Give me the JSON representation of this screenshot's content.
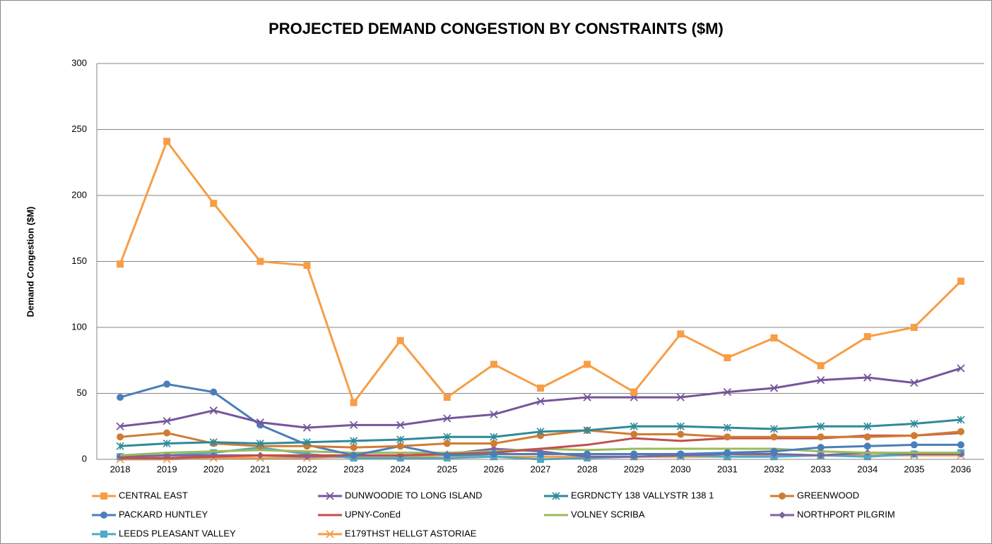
{
  "chart_data": {
    "type": "line",
    "title": "PROJECTED DEMAND CONGESTION BY CONSTRAINTS ($M)",
    "y_label": "Demand Congestion ($M)",
    "categories": [
      "2018",
      "2019",
      "2020",
      "2021",
      "2022",
      "2023",
      "2024",
      "2025",
      "2026",
      "2027",
      "2028",
      "2029",
      "2030",
      "2031",
      "2032",
      "2033",
      "2034",
      "2035",
      "2036"
    ],
    "ylim": [
      0,
      300
    ],
    "yticks": [
      0,
      50,
      100,
      150,
      200,
      250,
      300
    ],
    "grid": true,
    "legend": "bottom",
    "series": [
      {
        "name": "CENTRAL EAST",
        "color": "#f79d46",
        "marker": "square",
        "values": [
          148,
          241,
          194,
          150,
          147,
          43,
          90,
          47,
          72,
          54,
          72,
          51,
          95,
          77,
          92,
          71,
          93,
          100,
          135
        ]
      },
      {
        "name": "DUNWOODIE TO LONG ISLAND",
        "color": "#76559b",
        "marker": "x",
        "values": [
          25,
          29,
          37,
          28,
          24,
          26,
          26,
          31,
          34,
          44,
          47,
          47,
          47,
          51,
          54,
          60,
          62,
          58,
          69
        ]
      },
      {
        "name": "EGRDNCTY 138 VALLYSTR 138 1",
        "color": "#2f8a99",
        "marker": "asterisk",
        "values": [
          10,
          12,
          13,
          12,
          13,
          14,
          15,
          17,
          17,
          21,
          22,
          25,
          25,
          24,
          23,
          25,
          25,
          27,
          30
        ]
      },
      {
        "name": "GREENWOOD",
        "color": "#d17b32",
        "marker": "circle",
        "values": [
          17,
          20,
          12,
          10,
          10,
          9,
          10,
          12,
          12,
          18,
          22,
          19,
          19,
          17,
          17,
          17,
          17,
          18,
          21
        ]
      },
      {
        "name": "PACKARD HUNTLEY",
        "color": "#4a7ebb",
        "marker": "circle",
        "values": [
          47,
          57,
          51,
          26,
          11,
          3,
          10,
          3,
          4,
          4,
          4,
          4,
          4,
          5,
          6,
          9,
          10,
          11,
          11
        ]
      },
      {
        "name": "UPNY-ConEd",
        "color": "#c0504d",
        "marker": "none",
        "values": [
          1,
          1,
          2,
          3,
          3,
          3,
          3,
          4,
          5,
          8,
          11,
          16,
          14,
          16,
          16,
          16,
          18,
          18,
          20
        ]
      },
      {
        "name": "VOLNEY SCRIBA",
        "color": "#9bbb59",
        "marker": "none",
        "values": [
          3,
          5,
          6,
          7,
          6,
          5,
          5,
          5,
          6,
          8,
          7,
          8,
          8,
          8,
          8,
          6,
          5,
          5,
          5
        ]
      },
      {
        "name": "NORTHPORT PILGRIM",
        "color": "#8064a2",
        "marker": "diamond",
        "values": [
          2,
          3,
          3,
          3,
          2,
          3,
          3,
          4,
          8,
          6,
          2,
          2,
          3,
          4,
          4,
          3,
          5,
          4,
          4
        ]
      },
      {
        "name": "LEEDS PLEASANT VALLEY",
        "color": "#4bacc6",
        "marker": "square",
        "values": [
          2,
          3,
          5,
          9,
          4,
          1,
          1,
          1,
          2,
          0,
          1,
          2,
          3,
          2,
          2,
          3,
          2,
          4,
          5
        ]
      },
      {
        "name": "E179THST HELLGT ASTORIAE",
        "color": "#f79d46",
        "marker": "x",
        "values": [
          0,
          0,
          1,
          1,
          1,
          2,
          2,
          3,
          2,
          2,
          2,
          2,
          2,
          2,
          3,
          3,
          3,
          3,
          3
        ]
      }
    ]
  }
}
